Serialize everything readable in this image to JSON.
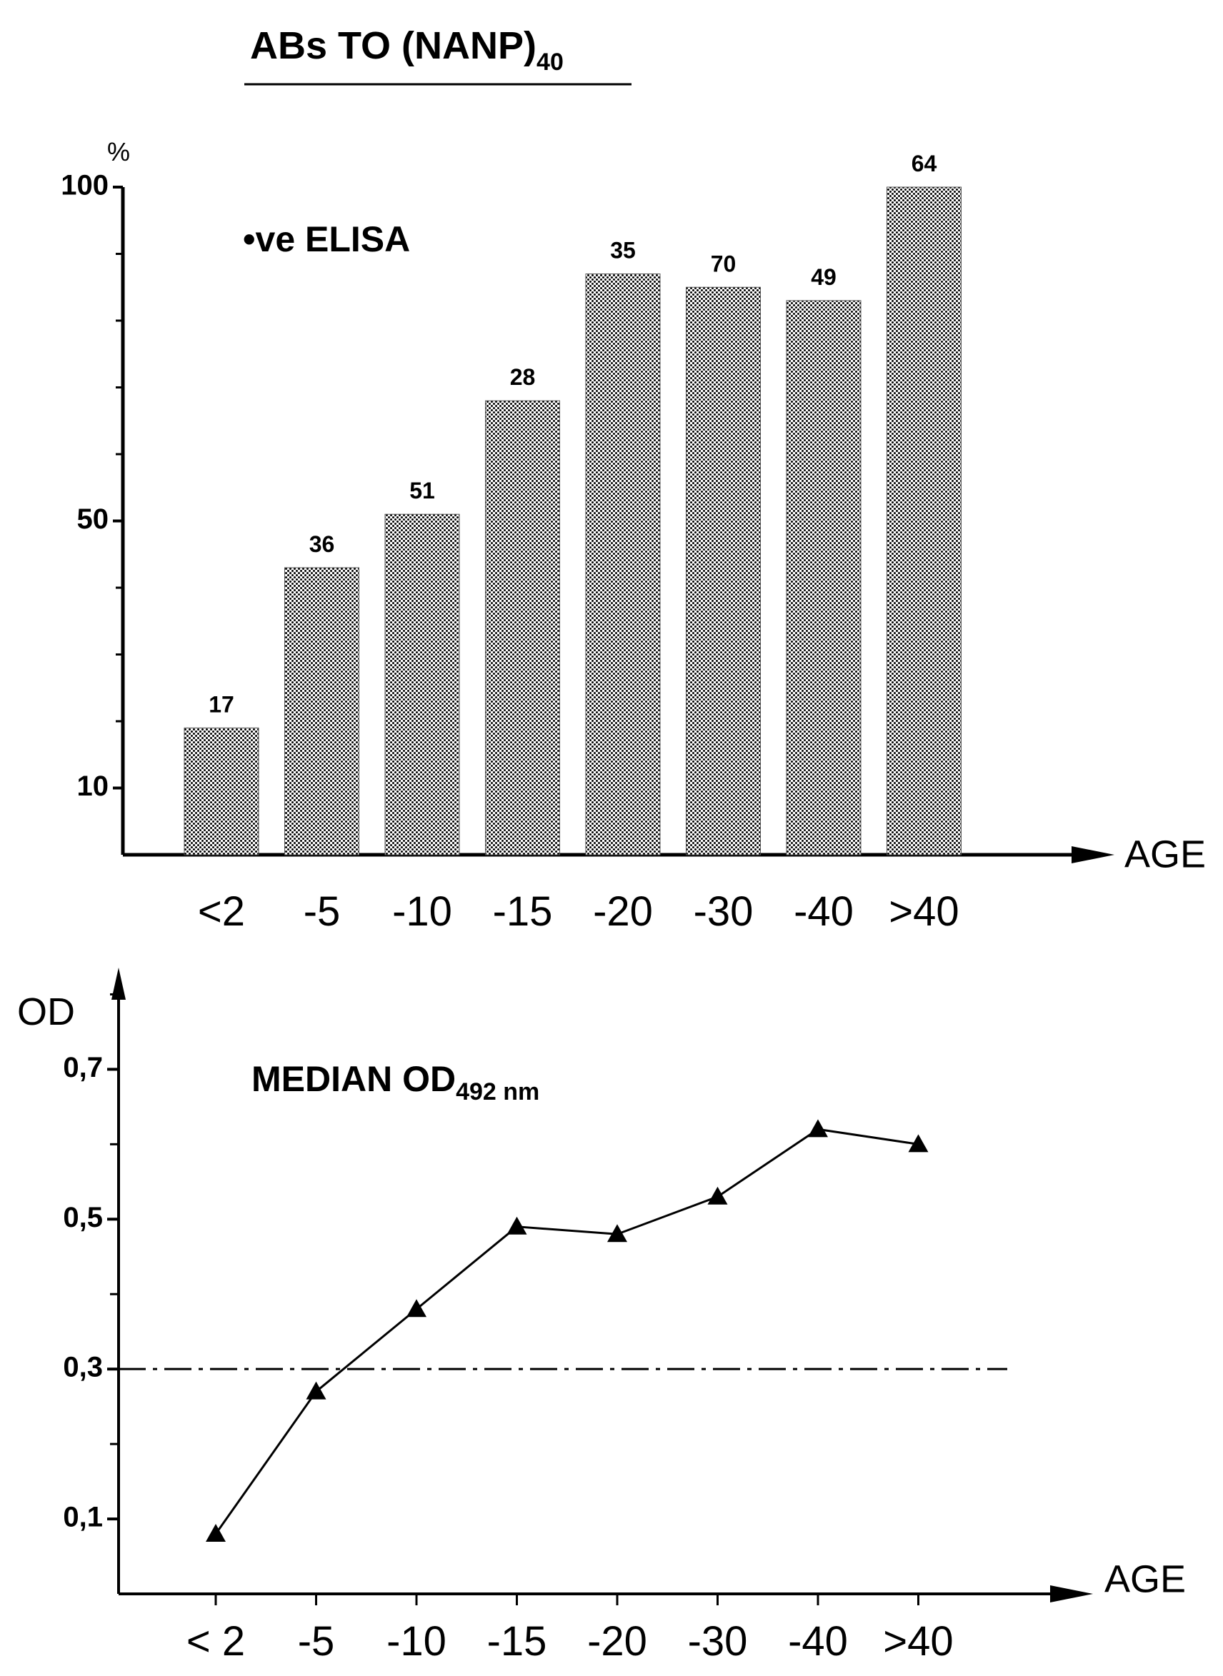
{
  "title": {
    "main": "ABs TO (NANP)",
    "subscript": "40"
  },
  "chart_data": [
    {
      "type": "bar",
      "categories": [
        "<2",
        "-5",
        "-10",
        "-15",
        "-20",
        "-30",
        "-40",
        ">40"
      ],
      "values": [
        19,
        43,
        51,
        68,
        87,
        85,
        83,
        100
      ],
      "data_labels": [
        "17",
        "36",
        "51",
        "28",
        "35",
        "70",
        "49",
        "64"
      ],
      "ytick_values": [
        10,
        50,
        100
      ],
      "ytick_labels": [
        "10",
        "50",
        "100"
      ],
      "ylim": [
        0,
        100
      ],
      "y_unit": "%",
      "xlabel": "AGE",
      "annotation": "•ve ELISA",
      "bar_color": "#9a9a9a"
    },
    {
      "type": "line",
      "categories": [
        "< 2",
        "-5",
        "-10",
        "-15",
        "-20",
        "-30",
        "-40",
        ">40"
      ],
      "values": [
        0.08,
        0.27,
        0.38,
        0.49,
        0.48,
        0.53,
        0.62,
        0.6
      ],
      "ytick_values": [
        0.1,
        0.3,
        0.5,
        0.7
      ],
      "ytick_labels": [
        "0,1",
        "0,3",
        "0,5",
        "0,7"
      ],
      "ylim": [
        0,
        0.85
      ],
      "ylabel": "OD",
      "xlabel": "AGE",
      "annotation": {
        "main": "MEDIAN OD",
        "subscript": "492 nm"
      },
      "threshold": 0.3
    }
  ]
}
